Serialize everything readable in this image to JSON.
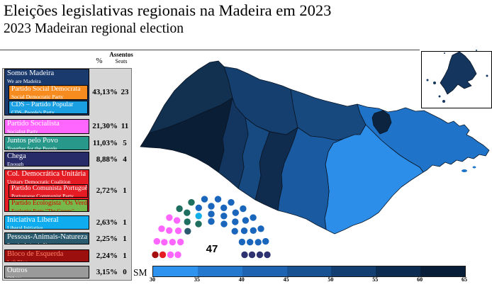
{
  "title": "Eleições legislativas regionais na Madeira em 2023",
  "subtitle": "2023 Madeiran regional election",
  "table": {
    "col_pct": "%",
    "col_seats_pt": "Assentos",
    "col_seats_en": "Seats",
    "rows": [
      {
        "id": "somos-madeira",
        "pt": "Somos Madeira",
        "en": "We are Madeira",
        "bg": "#1a3a6e",
        "fg": "#ffffff",
        "pct": "43,13%",
        "seats": "23",
        "children": [
          {
            "id": "psd",
            "pt": "Partido Social Democrata",
            "en": "Social Democratic Party",
            "bg": "#f68b1f",
            "fg": "#ffffff"
          },
          {
            "id": "cds-pp",
            "pt": "CDS – Partido Popular",
            "en": "CDS–People's Party",
            "bg": "#1a9fe3",
            "fg": "#ffffff"
          }
        ]
      },
      {
        "id": "ps",
        "pt": "Partido Socialista",
        "en": "Socialist Party",
        "bg": "#ff66ff",
        "fg": "#ffffff",
        "pct": "21,30%",
        "seats": "11"
      },
      {
        "id": "jpp",
        "pt": "Juntos pelo Povo",
        "en": "Together for the People",
        "bg": "#279889",
        "fg": "#ffffff",
        "pct": "11,03%",
        "seats": "5"
      },
      {
        "id": "chega",
        "pt": "Chega",
        "en": "Enough",
        "bg": "#272b67",
        "fg": "#ffffff",
        "pct": "8,88%",
        "seats": "4"
      },
      {
        "id": "cdu",
        "pt": "Col. Democrática Unitária",
        "en": "Unitary Democratic Coalition",
        "bg": "#e51c23",
        "fg": "#ffffff",
        "pct": "2,72%",
        "seats": "1",
        "children": [
          {
            "id": "pcp",
            "pt": "Partido Comunista Português",
            "en": "Portuguese Communist Party",
            "bg": "#e51c23",
            "fg": "#ffffff"
          },
          {
            "id": "pev",
            "pt": "Partido Ecologista \"Os Verdes\"",
            "en": "Ecologist Party \"The Greens\"",
            "bg": "#76b94a",
            "fg": "#d40000"
          }
        ]
      },
      {
        "id": "il",
        "pt": "Iniciativa Liberal",
        "en": "Liberal Initiative",
        "bg": "#0fadef",
        "fg": "#ffffff",
        "pct": "2,63%",
        "seats": "1"
      },
      {
        "id": "pan",
        "pt": "Pessoas-Animais-Natureza",
        "en": "People-Animals-Nature",
        "bg": "#2a5a6d",
        "fg": "#ffffff",
        "pct": "2,25%",
        "seats": "1"
      },
      {
        "id": "be",
        "pt": "Bloco de Esquerda",
        "en": "Left Bloc",
        "bg": "#9c0f0f",
        "fg": "#ff8066",
        "pct": "2,24%",
        "seats": "1"
      },
      {
        "id": "outros",
        "pt": "Outros",
        "en": "Others",
        "bg": "#9a9a9a",
        "fg": "#ffffff",
        "pct": "3,15%",
        "seats": "0"
      }
    ]
  },
  "parliament": {
    "total": "47",
    "parties": [
      {
        "id": "be",
        "color": "#a50f0f",
        "seats": 1
      },
      {
        "id": "cdu",
        "color": "#e51c23",
        "seats": 1
      },
      {
        "id": "ps",
        "color": "#ff66ff",
        "seats": 11
      },
      {
        "id": "pan",
        "color": "#2a5a6d",
        "seats": 1
      },
      {
        "id": "jpp",
        "color": "#1e6f5f",
        "seats": 5
      },
      {
        "id": "il",
        "color": "#12aee8",
        "seats": 1
      },
      {
        "id": "sm",
        "color": "#1b66bd",
        "seats": 23
      },
      {
        "id": "chega",
        "color": "#2f3270",
        "seats": 4
      }
    ]
  },
  "scale": {
    "label": "SM",
    "ticks": [
      "30",
      "35",
      "40",
      "45",
      "50",
      "55",
      "60",
      "65"
    ],
    "colors": [
      "#2e93ef",
      "#2478cd",
      "#1d63b2",
      "#185292",
      "#123e71",
      "#0c2b50",
      "#081d37"
    ]
  },
  "map": {
    "regions": {
      "calheta": {
        "color": "#0a1e35"
      },
      "porto_moniz": {
        "color": "#12304f"
      },
      "sao_vicente": {
        "color": "#153f6f"
      },
      "santana": {
        "color": "#17497f"
      },
      "faial_patch": {
        "color": "#0d2440"
      },
      "machico": {
        "color": "#1f74c9"
      },
      "santa_cruz": {
        "color": "#2d8ee9"
      },
      "funchal": {
        "color": "#1a5aa0"
      },
      "camara_de_lobos": {
        "color": "#0f2b4d"
      },
      "ribeira_brava": {
        "color": "#174a80"
      },
      "ponta_do_sol": {
        "color": "#12365f"
      },
      "porto_santo": {
        "color": "#14365e"
      },
      "islets": {
        "color": "#1f74c9"
      }
    }
  }
}
